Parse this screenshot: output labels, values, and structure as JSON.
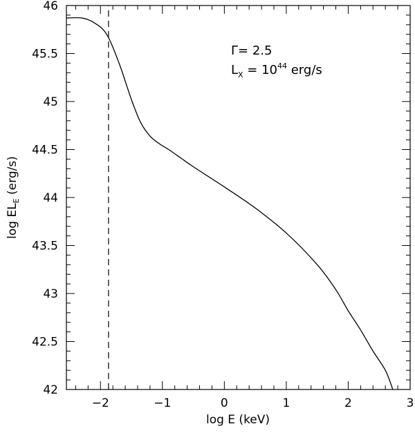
{
  "chart_data": {
    "type": "line",
    "xlabel": "log E (keV)",
    "ylabel_main": "log EL",
    "ylabel_sub": "E",
    "ylabel_unit": "(erg/s)",
    "xlim": [
      -2.55,
      3
    ],
    "ylim": [
      42,
      46
    ],
    "xticks": [
      -2,
      -1,
      0,
      1,
      2,
      3
    ],
    "xtick_labels": [
      "−2",
      "−1",
      "0",
      "1",
      "2",
      "3"
    ],
    "yticks": [
      42,
      42.5,
      43,
      43.5,
      44,
      44.5,
      45,
      45.5,
      46
    ],
    "ytick_labels": [
      "42",
      "42.5",
      "43",
      "43.5",
      "44",
      "44.5",
      "45",
      "45.5",
      "46"
    ],
    "grid": false,
    "annotations": {
      "gamma": "Γ= 2.5",
      "lx_L": "L",
      "lx_sub": "X",
      "lx_eq": " = 10",
      "lx_exp": "44",
      "lx_unit": " erg/s"
    },
    "series": [
      {
        "style": "solid",
        "x": [
          -2.55,
          -2.3,
          -2.1,
          -1.9,
          -1.7,
          -1.5,
          -1.35,
          -1.2,
          -1.05,
          -0.9,
          -0.7,
          -0.5,
          0,
          0.5,
          1.0,
          1.5,
          1.8,
          2.0,
          2.2,
          2.4,
          2.6,
          2.72
        ],
        "y": [
          45.87,
          45.87,
          45.82,
          45.7,
          45.4,
          45.02,
          44.78,
          44.64,
          44.56,
          44.5,
          44.41,
          44.32,
          44.11,
          43.89,
          43.63,
          43.3,
          43.04,
          42.82,
          42.62,
          42.4,
          42.2,
          42.0
        ]
      },
      {
        "style": "dashed",
        "x": [
          -1.87,
          -1.87
        ],
        "y": [
          42,
          46
        ]
      }
    ]
  }
}
